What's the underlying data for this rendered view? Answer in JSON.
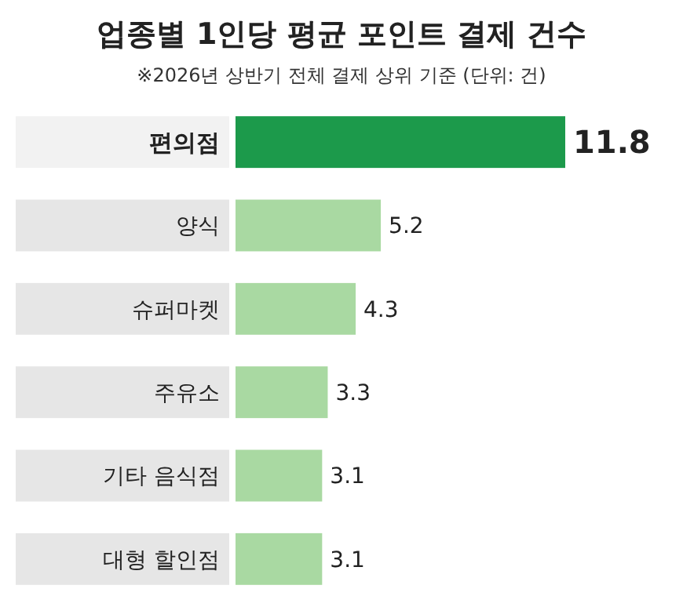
{
  "chart_data": {
    "type": "bar",
    "orientation": "horizontal",
    "title": "업종별 1인당 평균 포인트 결제 건수",
    "subtitle": "※2026년 상반기 전체 결제 상위 기준 (단위: 건)",
    "categories": [
      "편의점",
      "양식",
      "슈퍼마켓",
      "주유소",
      "기타 음식점",
      "대형 할인점"
    ],
    "values": [
      11.8,
      5.2,
      4.3,
      3.3,
      3.1,
      3.1
    ],
    "colors": [
      "#1c9a4b",
      "#a9d9a2",
      "#a9d9a2",
      "#a9d9a2",
      "#a9d9a2",
      "#a9d9a2"
    ],
    "data_labels": true
  }
}
